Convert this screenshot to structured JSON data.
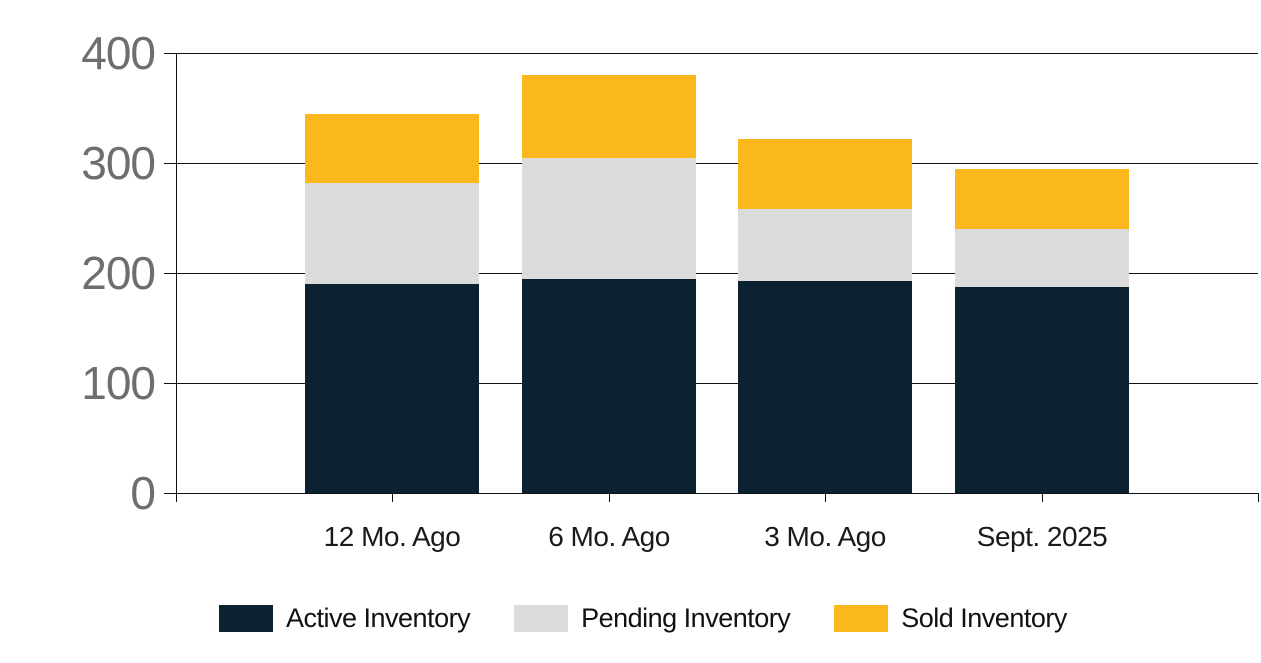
{
  "chart_data": {
    "type": "bar",
    "stacked": true,
    "title": "",
    "xlabel": "",
    "ylabel": "",
    "categories": [
      "12 Mo. Ago",
      "6 Mo. Ago",
      "3 Mo. Ago",
      "Sept. 2025"
    ],
    "series": [
      {
        "name": "Active Inventory",
        "color": "#0d2230",
        "values": [
          190,
          195,
          193,
          187
        ]
      },
      {
        "name": "Pending Inventory",
        "color": "#dbdbdb",
        "values": [
          92,
          110,
          65,
          53
        ]
      },
      {
        "name": "Sold Inventory",
        "color": "#fbb81c",
        "values": [
          63,
          75,
          64,
          55
        ]
      }
    ],
    "stack_totals": [
      345,
      380,
      322,
      295
    ],
    "ylim": [
      0,
      400
    ],
    "yticks": [
      0,
      100,
      200,
      300,
      400
    ],
    "grid": true,
    "legend_position": "bottom"
  },
  "colors": {
    "axis_line": "#111111",
    "y_tick_label": "#6e6e6e",
    "x_tick_label": "#1a1a1a",
    "legend_text": "#111111",
    "background": "#ffffff"
  }
}
